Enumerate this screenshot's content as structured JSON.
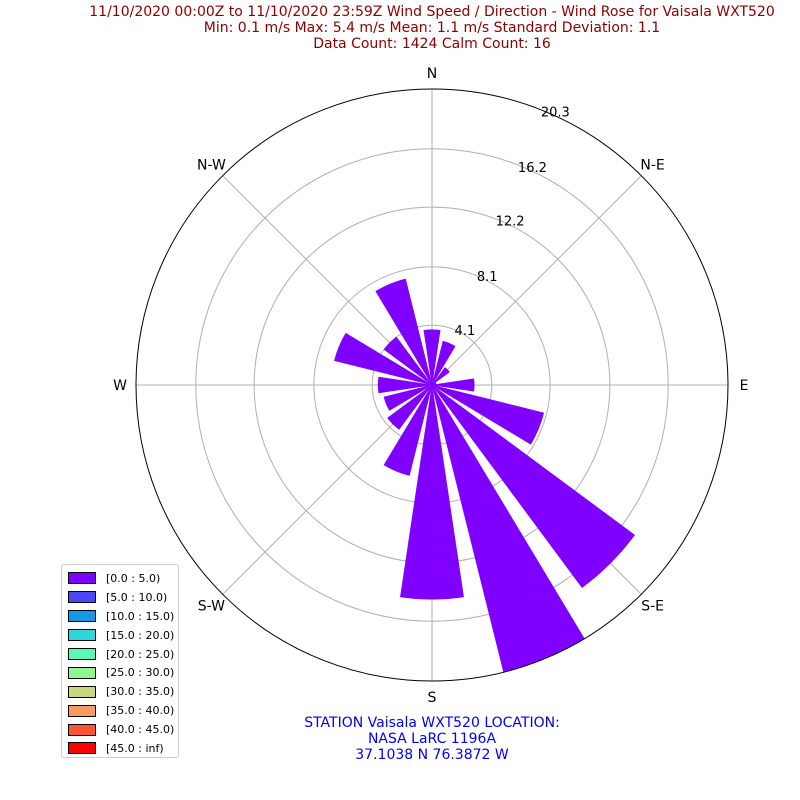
{
  "title_lines": [
    "11/10/2020 00:00Z to 11/10/2020 23:59Z Wind Speed / Direction - Wind Rose for Vaisala WXT520",
    "Min: 0.1 m/s   Max: 5.4 m/s   Mean: 1.1 m/s  Standard Deviation: 1.1",
    "Data Count: 1424  Calm Count:  16"
  ],
  "station_lines": [
    "STATION Vaisala WXT520 LOCATION:",
    "NASA LaRC 1196A",
    "37.1038 N 76.3872 W"
  ],
  "colors": {
    "title": "#8b0000",
    "station": "#0000ff",
    "grid": "#b0b0b0"
  },
  "chart_data": {
    "type": "windrose",
    "direction_labels": [
      {
        "text": "N",
        "angle": 0
      },
      {
        "text": "N-E",
        "angle": 45
      },
      {
        "text": "E",
        "angle": 90
      },
      {
        "text": "S-E",
        "angle": 135
      },
      {
        "text": "S",
        "angle": 180
      },
      {
        "text": "S-W",
        "angle": 225
      },
      {
        "text": "W",
        "angle": 270
      },
      {
        "text": "N-W",
        "angle": 315
      }
    ],
    "radial_ticks": [
      4.1,
      8.1,
      12.2,
      16.2,
      20.3
    ],
    "rmax": 20.3,
    "legend": [
      {
        "label": "[0.0 : 5.0)",
        "color": "#8000ff"
      },
      {
        "label": "[5.0 : 10.0)",
        "color": "#4a47f8"
      },
      {
        "label": "[10.0 : 15.0)",
        "color": "#139ae6"
      },
      {
        "label": "[15.0 : 20.0)",
        "color": "#2fd6d9"
      },
      {
        "label": "[20.0 : 25.0)",
        "color": "#5bf8b9"
      },
      {
        "label": "[25.0 : 30.0)",
        "color": "#8ef88f"
      },
      {
        "label": "[30.0 : 35.0)",
        "color": "#c8d87e"
      },
      {
        "label": "[35.0 : 40.0)",
        "color": "#f79c5e"
      },
      {
        "label": "[40.0 : 45.0)",
        "color": "#fd5432"
      },
      {
        "label": "[45.0 : inf)",
        "color": "#ff0000"
      }
    ],
    "bars": [
      {
        "direction": 0,
        "value": 3.8
      },
      {
        "direction": 22.5,
        "value": 3.1
      },
      {
        "direction": 45,
        "value": 1.5
      },
      {
        "direction": 67.5,
        "value": 0.3
      },
      {
        "direction": 90,
        "value": 2.9
      },
      {
        "direction": 112.5,
        "value": 7.9
      },
      {
        "direction": 135,
        "value": 17.3
      },
      {
        "direction": 157.5,
        "value": 20.3
      },
      {
        "direction": 180,
        "value": 14.7
      },
      {
        "direction": 202.5,
        "value": 6.4
      },
      {
        "direction": 225,
        "value": 3.8
      },
      {
        "direction": 247.5,
        "value": 3.4
      },
      {
        "direction": 270,
        "value": 3.7
      },
      {
        "direction": 292.5,
        "value": 6.9
      },
      {
        "direction": 315,
        "value": 4.1
      },
      {
        "direction": 337.5,
        "value": 7.5
      }
    ],
    "bar_color": "#8000ff"
  }
}
